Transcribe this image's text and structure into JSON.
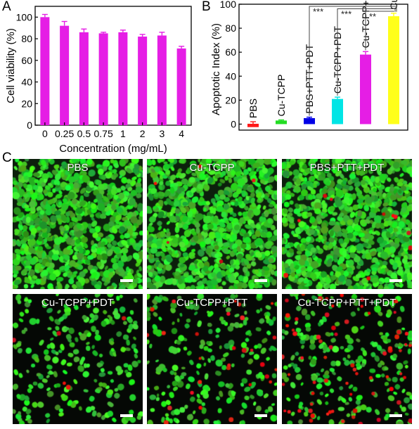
{
  "panel_letters": {
    "a": "A",
    "b": "B",
    "c": "C"
  },
  "chart_data": [
    {
      "type": "bar",
      "categories": [
        "0",
        "0.25",
        "0.5",
        "0.75",
        "1",
        "2",
        "3",
        "4"
      ],
      "values": [
        100,
        92,
        86,
        85,
        86,
        82,
        83,
        71
      ],
      "errors": [
        2.5,
        4,
        3,
        1,
        2,
        2,
        3,
        2
      ],
      "xlabel": "Concentration (mg/mL)",
      "ylabel": "Cell viability (%)",
      "ylim": [
        0,
        110
      ],
      "yticks": [
        "0",
        "20",
        "40",
        "60",
        "80",
        "100"
      ],
      "color": "#e51ee5"
    },
    {
      "type": "bar",
      "categories": [
        "PBS",
        "Cu-TCPP",
        "PBS+PTT+PDT",
        "Cu-TCPP+PDT",
        "Cu-TCPP+PTT",
        "Cu-TCPP+PTT+PDT"
      ],
      "values": [
        0,
        3,
        5,
        21,
        58,
        90
      ],
      "errors": [
        2,
        0.5,
        0.8,
        1.5,
        2.5,
        2.5
      ],
      "colors": [
        "#ff1a1a",
        "#22dd22",
        "#0000e6",
        "#00e5e5",
        "#e51ee5",
        "#ffff1a"
      ],
      "ylabel": "Apoptotic Index (%)",
      "ylim": [
        -5,
        100
      ],
      "yticks": [
        "0",
        "20",
        "40",
        "60",
        "80",
        "100"
      ],
      "significance": [
        {
          "from": 2,
          "to": 5,
          "label": "***"
        },
        {
          "from": 3,
          "to": 5,
          "label": "***"
        },
        {
          "from": 4,
          "to": 5,
          "label": "**"
        }
      ]
    }
  ],
  "micrographs": [
    {
      "label": "PBS",
      "red_fraction": 0.0
    },
    {
      "label": "Cu-TCPP",
      "red_fraction": 0.005
    },
    {
      "label": "PBS+PTT+PDT",
      "red_fraction": 0.01
    },
    {
      "label": "Cu-TCPP+PDT",
      "red_fraction": 0.02
    },
    {
      "label": "Cu-TCPP+PTT",
      "red_fraction": 0.12
    },
    {
      "label": "Cu-TCPP+PTT+PDT",
      "red_fraction": 0.3
    }
  ]
}
